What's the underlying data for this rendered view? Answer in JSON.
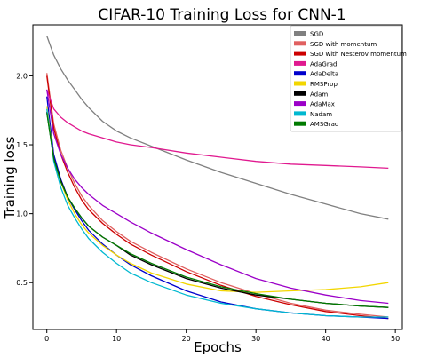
{
  "chart_data": {
    "type": "line",
    "title": "CIFAR-10 Training Loss for CNN-1",
    "xlabel": "Epochs",
    "ylabel": "Training loss",
    "xlim": [
      -2,
      51
    ],
    "ylim": [
      0.16,
      2.37
    ],
    "xticks": [
      0,
      10,
      20,
      30,
      40,
      50
    ],
    "yticks": [
      0.5,
      1.0,
      1.5,
      2.0
    ],
    "xtick_labels": [
      "0",
      "10",
      "20",
      "30",
      "40",
      "50"
    ],
    "ytick_labels": [
      "0.5",
      "1.0",
      "1.5",
      "2.0"
    ],
    "grid": false,
    "legend_position": "top-right",
    "x": [
      0,
      1,
      2,
      3,
      4,
      5,
      6,
      8,
      10,
      12,
      15,
      20,
      25,
      30,
      35,
      40,
      45,
      49
    ],
    "series": [
      {
        "name": "SGD",
        "color": "#808080",
        "values": [
          2.29,
          2.15,
          2.05,
          1.97,
          1.9,
          1.83,
          1.77,
          1.67,
          1.6,
          1.55,
          1.49,
          1.39,
          1.3,
          1.22,
          1.14,
          1.07,
          1.0,
          0.96
        ]
      },
      {
        "name": "SGD with momentum",
        "color": "#e06060",
        "values": [
          2.02,
          1.65,
          1.46,
          1.33,
          1.22,
          1.13,
          1.06,
          0.95,
          0.87,
          0.8,
          0.72,
          0.6,
          0.5,
          0.42,
          0.35,
          0.3,
          0.27,
          0.25
        ]
      },
      {
        "name": "SGD with Nesterov momentum",
        "color": "#cc0000",
        "values": [
          2.0,
          1.62,
          1.43,
          1.3,
          1.19,
          1.1,
          1.03,
          0.93,
          0.85,
          0.78,
          0.7,
          0.58,
          0.48,
          0.4,
          0.34,
          0.29,
          0.26,
          0.24
        ]
      },
      {
        "name": "AdaGrad",
        "color": "#e0198f",
        "values": [
          1.9,
          1.76,
          1.7,
          1.66,
          1.63,
          1.6,
          1.58,
          1.55,
          1.52,
          1.5,
          1.48,
          1.44,
          1.41,
          1.38,
          1.36,
          1.35,
          1.34,
          1.33
        ]
      },
      {
        "name": "AdaDelta",
        "color": "#0000cc",
        "values": [
          1.85,
          1.43,
          1.25,
          1.12,
          1.03,
          0.95,
          0.88,
          0.78,
          0.7,
          0.63,
          0.55,
          0.44,
          0.36,
          0.31,
          0.28,
          0.26,
          0.25,
          0.24
        ]
      },
      {
        "name": "RMSProp",
        "color": "#f2d600",
        "values": [
          1.78,
          1.4,
          1.23,
          1.1,
          1.0,
          0.92,
          0.86,
          0.77,
          0.7,
          0.64,
          0.57,
          0.49,
          0.44,
          0.43,
          0.44,
          0.45,
          0.47,
          0.5
        ]
      },
      {
        "name": "Adam",
        "color": "#000000",
        "values": [
          1.74,
          1.4,
          1.24,
          1.12,
          1.04,
          0.97,
          0.91,
          0.83,
          0.77,
          0.7,
          0.63,
          0.53,
          0.46,
          0.41,
          0.38,
          0.35,
          0.33,
          0.32
        ]
      },
      {
        "name": "AdaMax",
        "color": "#9b00c8",
        "values": [
          1.9,
          1.58,
          1.43,
          1.33,
          1.25,
          1.19,
          1.14,
          1.06,
          1.0,
          0.94,
          0.86,
          0.74,
          0.63,
          0.53,
          0.46,
          0.41,
          0.37,
          0.35
        ]
      },
      {
        "name": "Nadam",
        "color": "#00b8d0",
        "values": [
          1.76,
          1.38,
          1.19,
          1.06,
          0.97,
          0.89,
          0.82,
          0.72,
          0.64,
          0.57,
          0.5,
          0.41,
          0.35,
          0.31,
          0.28,
          0.26,
          0.25,
          0.25
        ]
      },
      {
        "name": "AMSGrad",
        "color": "#007a00",
        "values": [
          1.73,
          1.4,
          1.23,
          1.12,
          1.04,
          0.97,
          0.91,
          0.83,
          0.77,
          0.71,
          0.64,
          0.54,
          0.47,
          0.42,
          0.38,
          0.35,
          0.33,
          0.32
        ]
      }
    ]
  }
}
